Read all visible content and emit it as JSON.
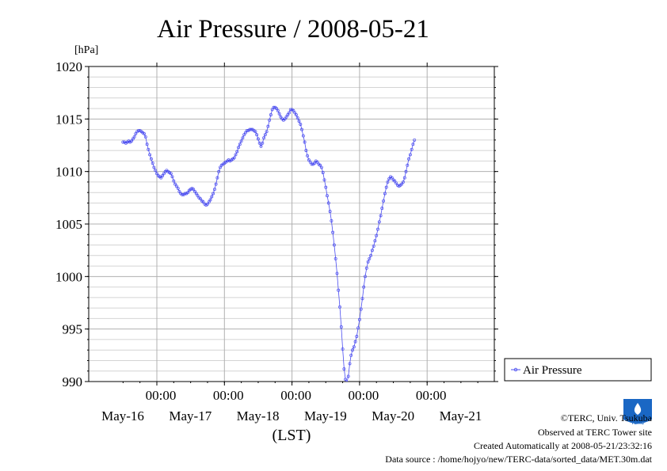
{
  "chart_data": {
    "type": "line",
    "title": "Air Pressure / 2008-05-21",
    "y_unit": "[hPa]",
    "xlabel": "(LST)",
    "ylim": [
      990,
      1020
    ],
    "y_ticks": [
      990,
      995,
      1000,
      1005,
      1010,
      1015,
      1020
    ],
    "y_tick_labels": [
      "990",
      "995",
      "1000",
      "1005",
      "1010",
      "1015",
      "1020"
    ],
    "x_time_labels": [
      "00:00",
      "00:00",
      "00:00",
      "00:00",
      "00:00"
    ],
    "x_day_labels": [
      "May-16",
      "May-17",
      "May-18",
      "May-19",
      "May-20",
      "May-21"
    ],
    "grid": true,
    "legend_position": "right",
    "series": [
      {
        "name": "Air Pressure",
        "color": "#4a4cf0",
        "start": "2008-05-15 12:00",
        "step_minutes": 30,
        "values": [
          1012.8,
          1012.8,
          1012.7,
          1012.8,
          1012.9,
          1012.8,
          1012.9,
          1013.1,
          1013.3,
          1013.6,
          1013.8,
          1013.9,
          1013.9,
          1013.8,
          1013.7,
          1013.6,
          1013.3,
          1012.6,
          1012.1,
          1011.6,
          1011.2,
          1010.8,
          1010.4,
          1010.1,
          1009.8,
          1009.6,
          1009.5,
          1009.4,
          1009.6,
          1009.8,
          1010.0,
          1010.1,
          1010.0,
          1009.9,
          1009.8,
          1009.5,
          1009.1,
          1008.8,
          1008.6,
          1008.4,
          1008.1,
          1007.9,
          1007.8,
          1007.8,
          1007.9,
          1007.9,
          1008.0,
          1008.2,
          1008.3,
          1008.4,
          1008.3,
          1008.1,
          1007.9,
          1007.7,
          1007.5,
          1007.4,
          1007.2,
          1007.1,
          1006.9,
          1006.8,
          1006.9,
          1007.1,
          1007.3,
          1007.6,
          1007.9,
          1008.3,
          1008.8,
          1009.4,
          1010.0,
          1010.4,
          1010.6,
          1010.7,
          1010.8,
          1010.9,
          1011.0,
          1011.1,
          1011.0,
          1011.1,
          1011.2,
          1011.3,
          1011.6,
          1011.9,
          1012.3,
          1012.6,
          1012.9,
          1013.2,
          1013.5,
          1013.7,
          1013.9,
          1013.9,
          1014.0,
          1014.0,
          1014.0,
          1013.9,
          1013.8,
          1013.5,
          1013.1,
          1012.7,
          1012.4,
          1012.7,
          1013.2,
          1013.5,
          1013.8,
          1014.3,
          1014.9,
          1015.4,
          1015.9,
          1016.1,
          1016.1,
          1016.0,
          1015.8,
          1015.5,
          1015.2,
          1015.0,
          1014.9,
          1015.0,
          1015.2,
          1015.4,
          1015.6,
          1015.9,
          1015.9,
          1015.8,
          1015.6,
          1015.4,
          1015.1,
          1014.8,
          1014.5,
          1014.0,
          1013.4,
          1012.8,
          1012.0,
          1011.5,
          1011.1,
          1010.9,
          1010.7,
          1010.7,
          1010.8,
          1011.0,
          1010.9,
          1010.7,
          1010.6,
          1010.4,
          1009.9,
          1009.2,
          1008.5,
          1007.7,
          1007.0,
          1006.2,
          1005.3,
          1004.2,
          1003.0,
          1001.7,
          1000.3,
          998.7,
          997.1,
          995.2,
          993.1,
          991.2,
          990.2,
          989.9,
          990.5,
          991.7,
          992.5,
          993.0,
          993.3,
          993.8,
          994.3,
          995.1,
          995.9,
          996.9,
          997.9,
          999.0,
          1000.0,
          1000.8,
          1001.4,
          1001.7,
          1002.0,
          1002.5,
          1002.9,
          1003.4,
          1003.9,
          1004.5,
          1005.2,
          1005.8,
          1006.5,
          1007.2,
          1007.9,
          1008.5,
          1009.0,
          1009.3,
          1009.5,
          1009.4,
          1009.2,
          1009.1,
          1008.9,
          1008.7,
          1008.6,
          1008.7,
          1008.8,
          1009.0,
          1009.4,
          1010.0,
          1010.6,
          1011.2,
          1011.6,
          1012.1,
          1012.6,
          1013.0
        ]
      }
    ],
    "legend": [
      "Air Pressure"
    ]
  },
  "footer": {
    "copyright": "©TERC, Univ. Tsukuba",
    "observed": "Observed at TERC Tower site",
    "created": "Created Automatically at 2008-05-21/23:32:16",
    "source": "Data source : /home/hojyo/new/TERC-data/sorted_data/MET.30m.dat"
  },
  "logo": {
    "text": "TERC",
    "color": "#1a67c4"
  }
}
